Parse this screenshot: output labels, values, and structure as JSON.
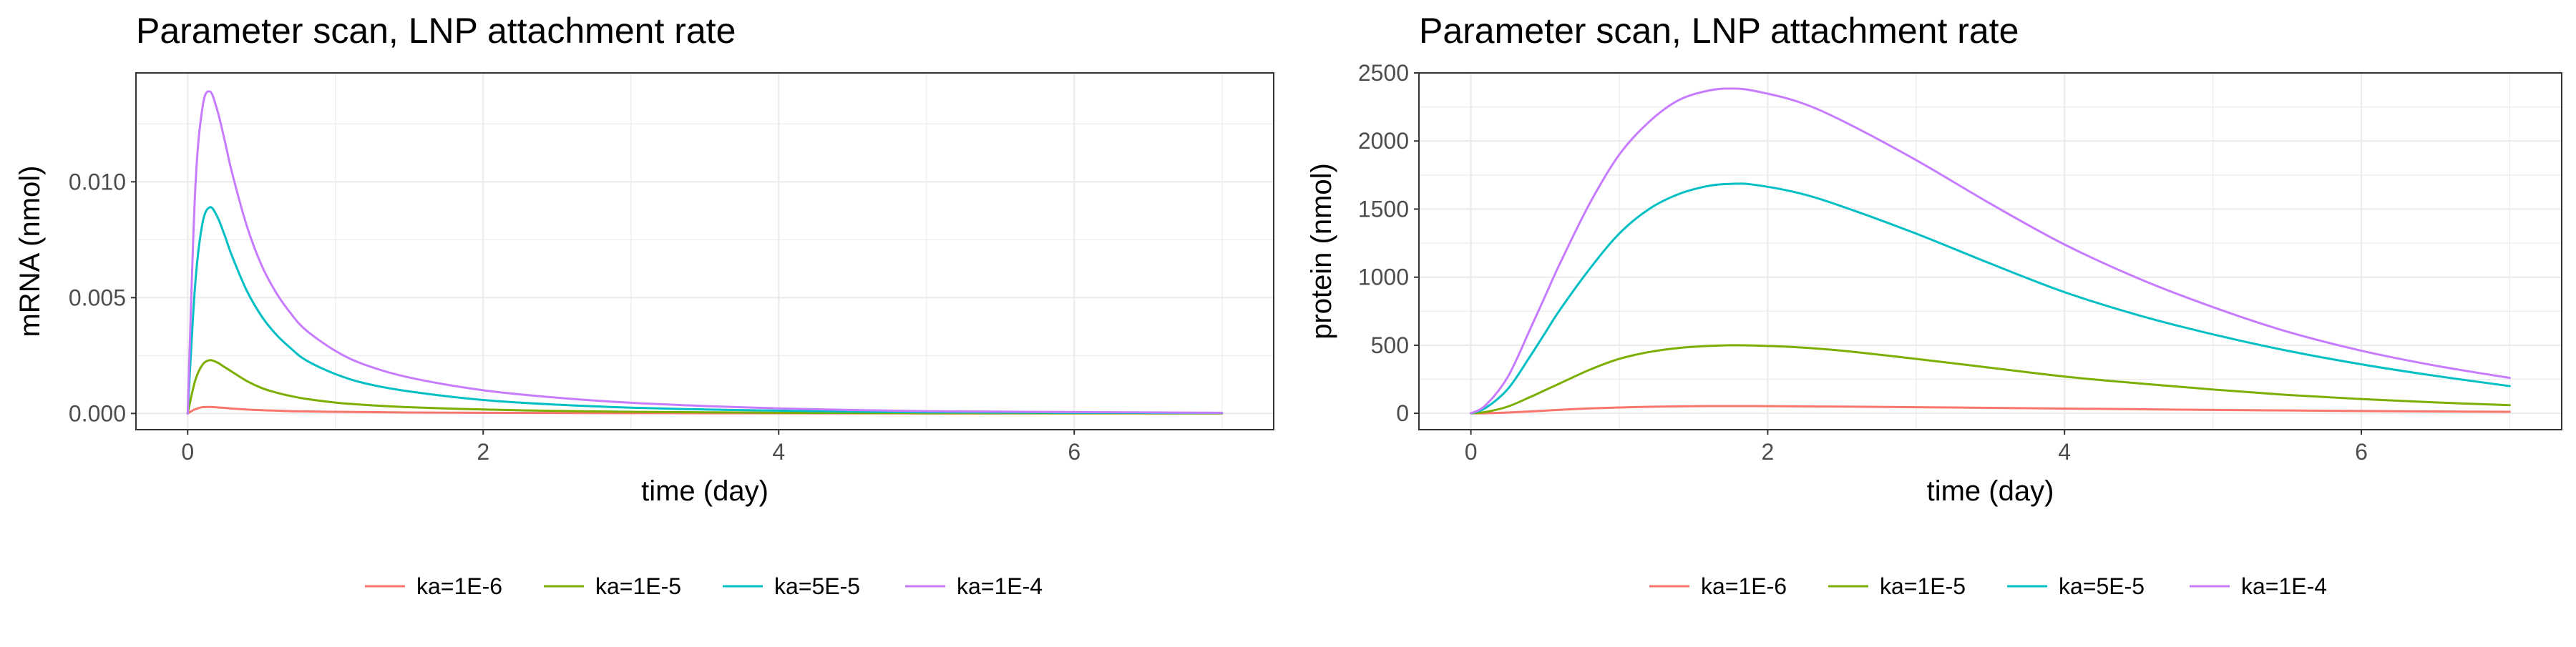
{
  "chart_data": [
    {
      "type": "line",
      "title": "Parameter scan, LNP attachment rate",
      "xlabel": "time (day)",
      "ylabel": "mRNA (nmol)",
      "xlim": [
        -0.35,
        7.35
      ],
      "ylim": [
        -0.0007,
        0.0147
      ],
      "x_ticks": [
        0,
        2,
        4,
        6
      ],
      "x_tick_labels": [
        "0",
        "2",
        "4",
        "6"
      ],
      "y_ticks": [
        0,
        0.005,
        0.01
      ],
      "y_tick_labels": [
        "0.000",
        "0.005",
        "0.010"
      ],
      "grid": true,
      "legend_position": "bottom",
      "x": [
        0,
        0.05,
        0.1,
        0.15,
        0.2,
        0.25,
        0.3,
        0.4,
        0.5,
        0.6,
        0.7,
        0.8,
        1.0,
        1.2,
        1.5,
        2.0,
        2.5,
        3.0,
        3.5,
        4.0,
        4.5,
        5.0,
        6.0,
        7.0
      ],
      "series": [
        {
          "name": "ka=1E-6",
          "color": "#F8766D",
          "values": [
            0,
            0.00018,
            0.00027,
            0.00028,
            0.00026,
            0.00024,
            0.00021,
            0.00017,
            0.00014,
            0.00012,
            0.0001,
            9e-05,
            7e-05,
            6e-05,
            4e-05,
            3e-05,
            2e-05,
            1.5e-05,
            1e-05,
            8e-06,
            5e-06,
            3e-06,
            2e-06,
            1e-06
          ]
        },
        {
          "name": "ka=1E-5",
          "color": "#7CAE00",
          "values": [
            0,
            0.0014,
            0.0021,
            0.0023,
            0.0022,
            0.002,
            0.0018,
            0.0014,
            0.0011,
            0.0009,
            0.00075,
            0.00063,
            0.00047,
            0.00037,
            0.00027,
            0.00017,
            0.00011,
            7e-05,
            5e-05,
            3e-05,
            2e-05,
            1.5e-05,
            1e-05,
            5e-06
          ]
        },
        {
          "name": "ka=5E-5",
          "color": "#00BFC4",
          "values": [
            0,
            0.0055,
            0.0082,
            0.0089,
            0.0085,
            0.0077,
            0.0068,
            0.0053,
            0.0042,
            0.0034,
            0.0028,
            0.0023,
            0.0017,
            0.0013,
            0.00095,
            0.00058,
            0.00038,
            0.00025,
            0.00017,
            0.00012,
            8e-05,
            5e-05,
            3e-05,
            2e-05
          ]
        },
        {
          "name": "ka=1E-4",
          "color": "#C77CFF",
          "values": [
            0,
            0.0095,
            0.0132,
            0.0139,
            0.0131,
            0.0118,
            0.0104,
            0.0081,
            0.0064,
            0.0052,
            0.0043,
            0.0036,
            0.0027,
            0.0021,
            0.00155,
            0.001,
            0.00068,
            0.00046,
            0.00032,
            0.00022,
            0.00015,
            0.0001,
            6e-05,
            3e-05
          ]
        }
      ]
    },
    {
      "type": "line",
      "title": "Parameter scan, LNP attachment rate",
      "xlabel": "time (day)",
      "ylabel": "protein (nmol)",
      "xlim": [
        -0.35,
        7.35
      ],
      "ylim": [
        -120,
        2500
      ],
      "x_ticks": [
        0,
        2,
        4,
        6
      ],
      "x_tick_labels": [
        "0",
        "2",
        "4",
        "6"
      ],
      "y_ticks": [
        0,
        500,
        1000,
        1500,
        2000,
        2500
      ],
      "y_tick_labels": [
        "0",
        "500",
        "1000",
        "1500",
        "2000",
        "2500"
      ],
      "grid": true,
      "legend_position": "bottom",
      "x": [
        0,
        0.1,
        0.25,
        0.4,
        0.5,
        0.6,
        0.8,
        1.0,
        1.2,
        1.4,
        1.6,
        1.75,
        1.9,
        2.2,
        2.5,
        3.0,
        3.5,
        4.0,
        4.5,
        5.0,
        5.5,
        6.0,
        6.5,
        7.0
      ],
      "series": [
        {
          "name": "ka=1E-6",
          "color": "#F8766D",
          "values": [
            0,
            1,
            6,
            14,
            20,
            26,
            36,
            43,
            48,
            51,
            53,
            53,
            53,
            51,
            49,
            45,
            40,
            35,
            30,
            25,
            21,
            17,
            14,
            11
          ]
        },
        {
          "name": "ka=1E-5",
          "color": "#7CAE00",
          "values": [
            0,
            10,
            50,
            120,
            170,
            220,
            320,
            400,
            450,
            480,
            495,
            500,
            498,
            485,
            460,
            400,
            335,
            270,
            220,
            175,
            135,
            105,
            80,
            60
          ]
        },
        {
          "name": "ka=5E-5",
          "color": "#00BFC4",
          "values": [
            0,
            40,
            180,
            420,
            590,
            760,
            1060,
            1320,
            1500,
            1610,
            1670,
            1685,
            1680,
            1620,
            1520,
            1320,
            1100,
            890,
            720,
            580,
            460,
            360,
            275,
            200
          ]
        },
        {
          "name": "ka=1E-4",
          "color": "#C77CFF",
          "values": [
            0,
            60,
            270,
            620,
            860,
            1100,
            1540,
            1900,
            2140,
            2300,
            2370,
            2385,
            2370,
            2290,
            2150,
            1860,
            1540,
            1240,
            990,
            780,
            600,
            460,
            350,
            260
          ]
        }
      ]
    }
  ]
}
